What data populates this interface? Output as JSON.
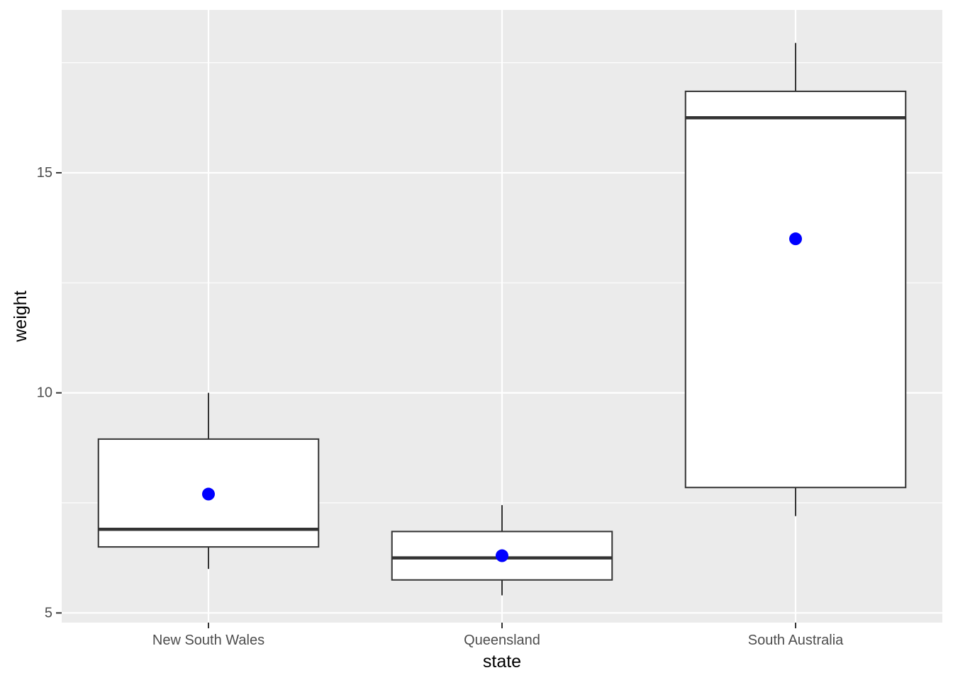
{
  "chart_data": {
    "type": "boxplot",
    "title": "",
    "xlabel": "state",
    "ylabel": "weight",
    "categories": [
      "New South Wales",
      "Queensland",
      "South Australia"
    ],
    "boxes": [
      {
        "category": "New South Wales",
        "whisker_low": 6.0,
        "q1": 6.5,
        "median": 6.9,
        "q3": 8.95,
        "whisker_high": 10.0,
        "mean": 7.7
      },
      {
        "category": "Queensland",
        "whisker_low": 5.4,
        "q1": 5.75,
        "median": 6.25,
        "q3": 6.85,
        "whisker_high": 7.45,
        "mean": 6.3
      },
      {
        "category": "South Australia",
        "whisker_low": 7.2,
        "q1": 7.85,
        "median": 16.25,
        "q3": 16.85,
        "whisker_high": 17.95,
        "mean": 13.5
      }
    ],
    "y_ticks": [
      5,
      10,
      15
    ],
    "y_tick_labels": [
      "5",
      "10",
      "15"
    ],
    "ylim": [
      4.78,
      18.7
    ],
    "grid": true,
    "colors": {
      "panel_background": "#EBEBEB",
      "grid": "#FFFFFF",
      "box_fill": "#FFFFFF",
      "box_stroke": "#333333",
      "mean_point": "#0000FF",
      "tick_mark": "#333333"
    }
  }
}
